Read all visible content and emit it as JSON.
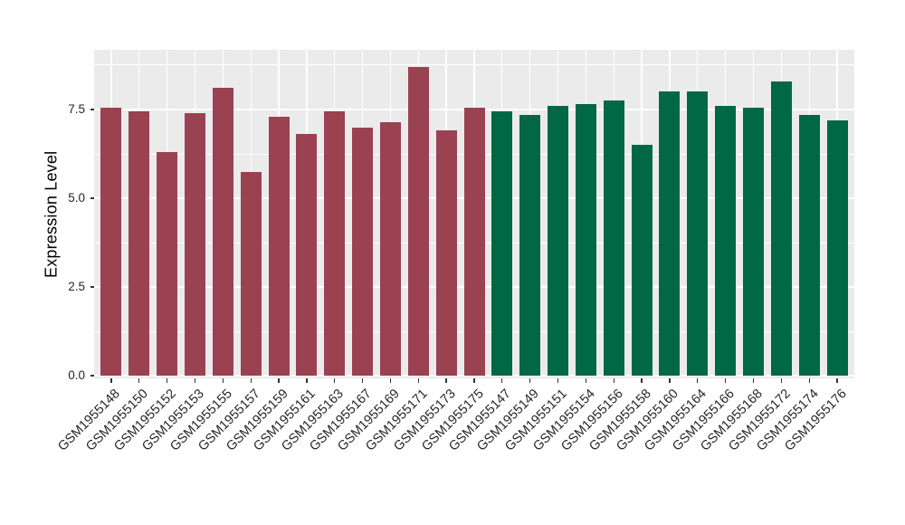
{
  "figure": {
    "background": "#ffffff",
    "panel_background": "#ebebeb",
    "grid_color": "#ffffff",
    "axis_text_color": "#262626",
    "axis_title_color": "#000000",
    "tick_mark_color": "#333333"
  },
  "chart_data": {
    "type": "bar",
    "title": "",
    "xlabel": "",
    "ylabel": "Expression Level",
    "ylim": [
      0,
      9.18
    ],
    "yticks": [
      0.0,
      2.5,
      5.0,
      7.5
    ],
    "ytick_labels": [
      "0.0",
      "2.5",
      "5.0",
      "7.5"
    ],
    "minor_gridlines": [
      1.25,
      3.75,
      6.25,
      8.75
    ],
    "grid": true,
    "legend": "none",
    "x_label_angle": 45,
    "groups": [
      {
        "name": "group-1",
        "color": "#9a4251"
      },
      {
        "name": "group-2",
        "color": "#016846"
      }
    ],
    "bars": [
      {
        "label": "GSM1955148",
        "value": 7.55,
        "group": 0
      },
      {
        "label": "GSM1955150",
        "value": 7.45,
        "group": 0
      },
      {
        "label": "GSM1955152",
        "value": 6.3,
        "group": 0
      },
      {
        "label": "GSM1955153",
        "value": 7.4,
        "group": 0
      },
      {
        "label": "GSM1955155",
        "value": 8.1,
        "group": 0
      },
      {
        "label": "GSM1955157",
        "value": 5.75,
        "group": 0
      },
      {
        "label": "GSM1955159",
        "value": 7.3,
        "group": 0
      },
      {
        "label": "GSM1955161",
        "value": 6.8,
        "group": 0
      },
      {
        "label": "GSM1955163",
        "value": 7.45,
        "group": 0
      },
      {
        "label": "GSM1955167",
        "value": 7.0,
        "group": 0
      },
      {
        "label": "GSM1955169",
        "value": 7.15,
        "group": 0
      },
      {
        "label": "GSM1955171",
        "value": 8.7,
        "group": 0
      },
      {
        "label": "GSM1955173",
        "value": 6.9,
        "group": 0
      },
      {
        "label": "GSM1955175",
        "value": 7.55,
        "group": 0
      },
      {
        "label": "GSM1955147",
        "value": 7.45,
        "group": 1
      },
      {
        "label": "GSM1955149",
        "value": 7.35,
        "group": 1
      },
      {
        "label": "GSM1955151",
        "value": 7.6,
        "group": 1
      },
      {
        "label": "GSM1955154",
        "value": 7.65,
        "group": 1
      },
      {
        "label": "GSM1955156",
        "value": 7.75,
        "group": 1
      },
      {
        "label": "GSM1955158",
        "value": 6.5,
        "group": 1
      },
      {
        "label": "GSM1955160",
        "value": 8.0,
        "group": 1
      },
      {
        "label": "GSM1955164",
        "value": 8.0,
        "group": 1
      },
      {
        "label": "GSM1955166",
        "value": 7.6,
        "group": 1
      },
      {
        "label": "GSM1955168",
        "value": 7.55,
        "group": 1
      },
      {
        "label": "GSM1955172",
        "value": 8.3,
        "group": 1
      },
      {
        "label": "GSM1955174",
        "value": 7.35,
        "group": 1
      },
      {
        "label": "GSM1955176",
        "value": 7.2,
        "group": 1
      }
    ]
  }
}
